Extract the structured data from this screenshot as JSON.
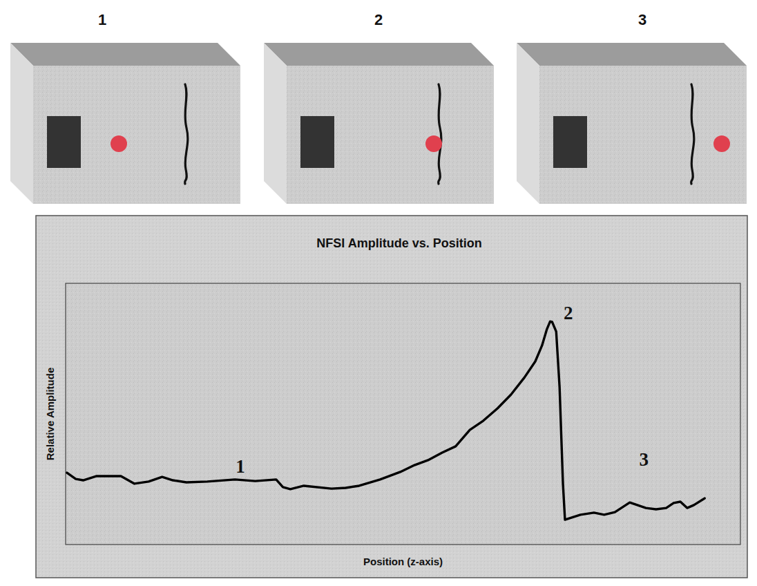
{
  "diagram": {
    "panels": [
      {
        "label": "1"
      },
      {
        "label": "2"
      },
      {
        "label": "3"
      }
    ]
  },
  "chart_data": {
    "type": "line",
    "title": "NFSI Amplitude vs. Position",
    "x_label": "Position (z-axis)",
    "y_label": "Relative Amplitude",
    "xlim": [
      0,
      100
    ],
    "ylim": [
      0,
      100
    ],
    "tick_labels": false,
    "grid": false,
    "color": "#000000",
    "x": [
      0.2,
      1.5,
      2.6,
      4.6,
      8.2,
      10.2,
      12.3,
      14.3,
      15.9,
      17.9,
      21.0,
      25.1,
      28.1,
      31.2,
      32.2,
      33.3,
      35.3,
      39.4,
      41.5,
      43.5,
      46.6,
      49.6,
      51.7,
      53.7,
      55.8,
      57.8,
      59.9,
      61.9,
      64.0,
      66.0,
      68.0,
      69.6,
      70.6,
      71.3,
      71.8,
      72.1,
      72.7,
      73.2,
      73.7,
      74.0,
      74.7,
      76.3,
      78.3,
      79.8,
      81.4,
      83.6,
      86.0,
      87.5,
      89.0,
      90.1,
      91.1,
      92.1,
      93.1,
      94.7
    ],
    "values": [
      27.5,
      25.1,
      24.6,
      26.2,
      26.2,
      23.3,
      24.1,
      25.9,
      24.6,
      23.8,
      24.1,
      24.9,
      24.3,
      24.9,
      22.0,
      21.2,
      22.5,
      21.4,
      21.7,
      22.5,
      24.9,
      27.8,
      30.4,
      32.3,
      35.2,
      37.6,
      43.9,
      47.4,
      52.1,
      57.4,
      64.0,
      70.1,
      76.2,
      82.3,
      85.4,
      85.2,
      81.5,
      60.3,
      23.3,
      9.5,
      10.1,
      11.4,
      12.2,
      11.4,
      12.4,
      16.1,
      14.0,
      13.5,
      14.0,
      15.9,
      16.4,
      14.0,
      15.1,
      17.7
    ],
    "annotations": [
      {
        "text": "1",
        "x": 25.9,
        "y": 29.9
      },
      {
        "text": "2",
        "x": 74.5,
        "y": 88.5
      },
      {
        "text": "3",
        "x": 85.7,
        "y": 32.5
      }
    ]
  }
}
